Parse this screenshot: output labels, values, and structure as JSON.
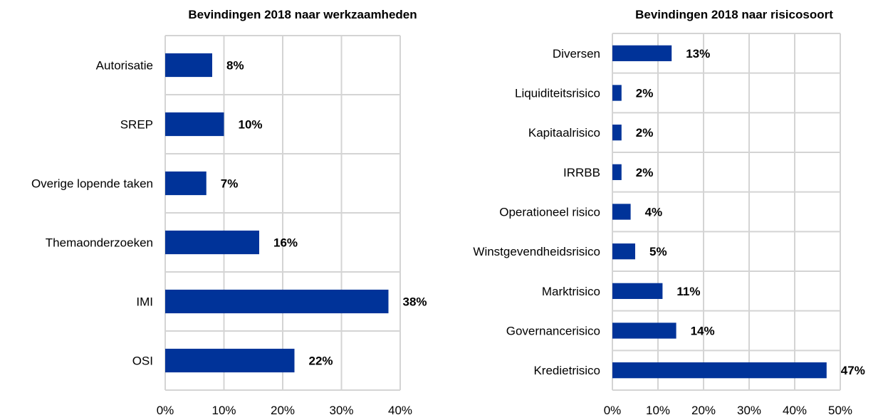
{
  "chart_data": [
    {
      "type": "bar",
      "orientation": "horizontal",
      "title": "Bevindingen 2018 naar werkzaamheden",
      "categories": [
        "Autorisatie",
        "SREP",
        "Overige lopende taken",
        "Themaonderzoeken",
        "IMI",
        "OSI"
      ],
      "values": [
        8,
        10,
        7,
        16,
        38,
        22
      ],
      "data_labels": [
        "8%",
        "10%",
        "7%",
        "16%",
        "38%",
        "22%"
      ],
      "xlim": [
        0,
        40
      ],
      "xticks": [
        0,
        10,
        20,
        30,
        40
      ],
      "xtick_labels": [
        "0%",
        "10%",
        "20%",
        "30%",
        "40%"
      ],
      "xlabel": "",
      "ylabel": "",
      "grid": true,
      "bar_color": "#003399"
    },
    {
      "type": "bar",
      "orientation": "horizontal",
      "title": "Bevindingen 2018 naar risicosoort",
      "categories": [
        "Diversen",
        "Liquiditeitsrisico",
        "Kapitaalrisico",
        "IRRBB",
        "Operationeel risico",
        "Winstgevendheidsrisico",
        "Marktrisico",
        "Governancerisico",
        "Kredietrisico"
      ],
      "values": [
        13,
        2,
        2,
        2,
        4,
        5,
        11,
        14,
        47
      ],
      "data_labels": [
        "13%",
        "2%",
        "2%",
        "2%",
        "4%",
        "5%",
        "11%",
        "14%",
        "47%"
      ],
      "xlim": [
        0,
        50
      ],
      "xticks": [
        0,
        10,
        20,
        30,
        40,
        50
      ],
      "xtick_labels": [
        "0%",
        "10%",
        "20%",
        "30%",
        "40%",
        "50%"
      ],
      "xlabel": "",
      "ylabel": "",
      "grid": true,
      "bar_color": "#003399"
    }
  ]
}
